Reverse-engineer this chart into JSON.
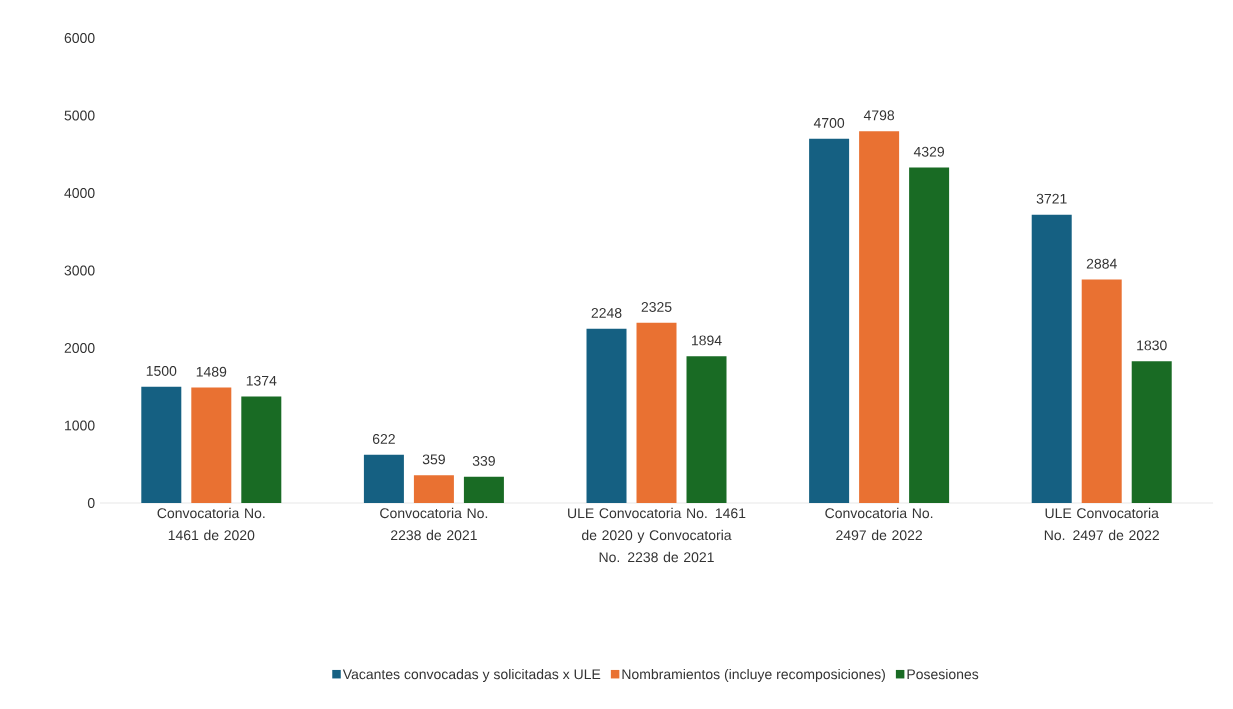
{
  "chart_data": {
    "type": "bar",
    "categories": [
      "Convocatoria No. 1461 de 2020",
      "Convocatoria No. 2238 de 2021",
      "ULE Convocatoria No. 1461 de 2020 y Convocatoria No. 2238 de 2021",
      "Convocatoria No. 2497 de 2022",
      "ULE Convocatoria No. 2497 de 2022"
    ],
    "series": [
      {
        "name": "Vacantes convocadas y solicitadas x ULE",
        "color": "#156082",
        "values": [
          1500,
          622,
          2248,
          4700,
          3721
        ]
      },
      {
        "name": "Nombramientos (incluye recomposiciones)",
        "color": "#e97132",
        "values": [
          1489,
          359,
          2325,
          4798,
          2884
        ]
      },
      {
        "name": "Posesiones",
        "color": "#196b24",
        "values": [
          1374,
          339,
          1894,
          4329,
          1830
        ]
      }
    ],
    "ylim": [
      0,
      6000
    ],
    "yticks": [
      0,
      1000,
      2000,
      3000,
      4000,
      5000,
      6000
    ],
    "data_labels": true,
    "legend": "bottom"
  }
}
